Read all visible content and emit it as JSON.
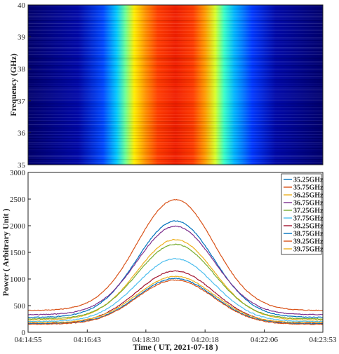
{
  "chart_data": [
    {
      "type": "heatmap",
      "title": "",
      "ylabel": "Frequency (GHz)",
      "ylim": [
        35,
        40
      ],
      "yticks": [
        35,
        36,
        37,
        38,
        39,
        40
      ],
      "colormap": "jet",
      "x_range": [
        "04:14:55",
        "04:23:53"
      ],
      "peak_time": "04:19:24"
    },
    {
      "type": "line",
      "title": "",
      "xlabel": "Time ( UT, 2021-07-18 )",
      "ylabel": "Power ( Arbitrary Unit )",
      "ylim": [
        0,
        3000
      ],
      "yticks": [
        0,
        500,
        1000,
        1500,
        2000,
        2500,
        3000
      ],
      "xticks": [
        "04:14:55",
        "04:16:43",
        "04:18:30",
        "04:20:18",
        "04:22:06",
        "04:23:53"
      ],
      "peak_time": "04:19:24",
      "legend_position": "top-right",
      "series": [
        {
          "name": "35.25GHz",
          "color": "#0072BD",
          "baseline": 280,
          "peak": 2090
        },
        {
          "name": "35.75GHz",
          "color": "#D95319",
          "baseline": 410,
          "peak": 2490
        },
        {
          "name": "36.25GHz",
          "color": "#EDB120",
          "baseline": 230,
          "peak": 1740
        },
        {
          "name": "36.75GHz",
          "color": "#7E2F8E",
          "baseline": 330,
          "peak": 1990
        },
        {
          "name": "37.25GHz",
          "color": "#77AC30",
          "baseline": 250,
          "peak": 1650
        },
        {
          "name": "37.75GHz",
          "color": "#4DBEEE",
          "baseline": 200,
          "peak": 1380
        },
        {
          "name": "38.25GHz",
          "color": "#A2142F",
          "baseline": 170,
          "peak": 1150
        },
        {
          "name": "38.75GHz",
          "color": "#0072BD",
          "baseline": 160,
          "peak": 1010
        },
        {
          "name": "39.25GHz",
          "color": "#D95319",
          "baseline": 150,
          "peak": 980
        },
        {
          "name": "39.75GHz",
          "color": "#EDB120",
          "baseline": 180,
          "peak": 1050
        }
      ]
    }
  ]
}
